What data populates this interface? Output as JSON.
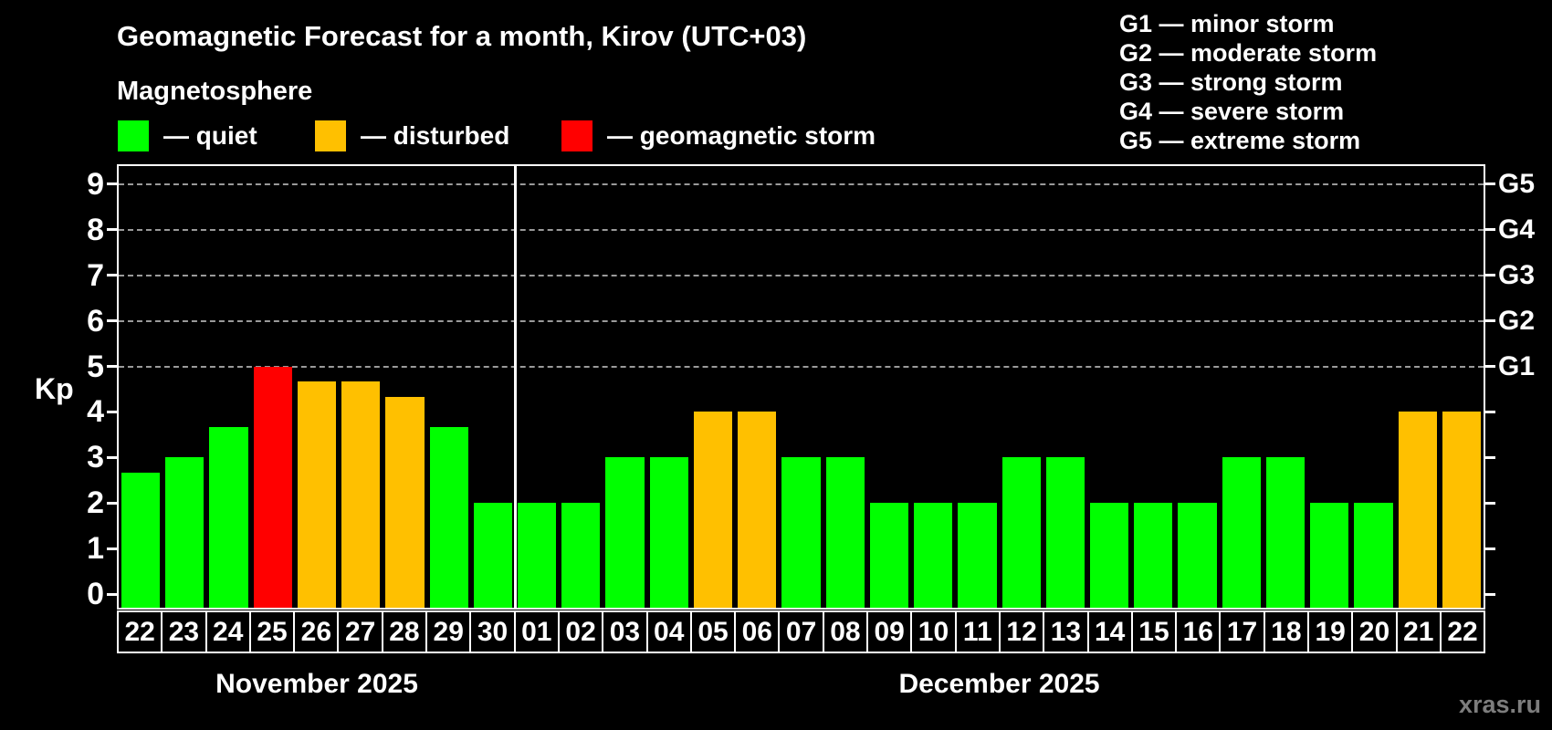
{
  "header": {
    "title": "Geomagnetic Forecast for a month, Kirov (UTC+03)",
    "subtitle": "Magnetosphere"
  },
  "legend": {
    "items": [
      {
        "key": "quiet",
        "label": "— quiet"
      },
      {
        "key": "disturbed",
        "label": "— disturbed"
      },
      {
        "key": "storm",
        "label": "— geomagnetic storm"
      }
    ]
  },
  "storm_scale": [
    "G1 — minor storm",
    "G2 — moderate storm",
    "G3 — strong storm",
    "G4 — severe storm",
    "G5 — extreme storm"
  ],
  "watermark": "xras.ru",
  "chart_data": {
    "type": "bar",
    "ylabel": "Kp",
    "ylim": [
      -0.3,
      9.4
    ],
    "yticks": [
      0,
      1,
      2,
      3,
      4,
      5,
      6,
      7,
      8,
      9
    ],
    "grid": "horizontal dashed lines only at Kp 5,6,7,8,9",
    "right_axis": [
      {
        "kp": 5,
        "label": "G1"
      },
      {
        "kp": 6,
        "label": "G2"
      },
      {
        "kp": 7,
        "label": "G3"
      },
      {
        "kp": 8,
        "label": "G4"
      },
      {
        "kp": 9,
        "label": "G5"
      }
    ],
    "colors": {
      "quiet": "#00ff00",
      "disturbed": "#ffc000",
      "storm": "#ff0000"
    },
    "months": [
      {
        "label": "November 2025",
        "days": 9
      },
      {
        "label": "December 2025",
        "days": 22
      }
    ],
    "bars": [
      {
        "date": "22",
        "month": "November 2025",
        "kp": 2.67,
        "level": "quiet"
      },
      {
        "date": "23",
        "month": "November 2025",
        "kp": 3,
        "level": "quiet"
      },
      {
        "date": "24",
        "month": "November 2025",
        "kp": 3.67,
        "level": "quiet"
      },
      {
        "date": "25",
        "month": "November 2025",
        "kp": 5,
        "level": "storm"
      },
      {
        "date": "26",
        "month": "November 2025",
        "kp": 4.67,
        "level": "disturbed"
      },
      {
        "date": "27",
        "month": "November 2025",
        "kp": 4.67,
        "level": "disturbed"
      },
      {
        "date": "28",
        "month": "November 2025",
        "kp": 4.33,
        "level": "disturbed"
      },
      {
        "date": "29",
        "month": "November 2025",
        "kp": 3.67,
        "level": "quiet"
      },
      {
        "date": "30",
        "month": "November 2025",
        "kp": 2,
        "level": "quiet"
      },
      {
        "date": "01",
        "month": "December 2025",
        "kp": 2,
        "level": "quiet"
      },
      {
        "date": "02",
        "month": "December 2025",
        "kp": 2,
        "level": "quiet"
      },
      {
        "date": "03",
        "month": "December 2025",
        "kp": 3,
        "level": "quiet"
      },
      {
        "date": "04",
        "month": "December 2025",
        "kp": 3,
        "level": "quiet"
      },
      {
        "date": "05",
        "month": "December 2025",
        "kp": 4,
        "level": "disturbed"
      },
      {
        "date": "06",
        "month": "December 2025",
        "kp": 4,
        "level": "disturbed"
      },
      {
        "date": "07",
        "month": "December 2025",
        "kp": 3,
        "level": "quiet"
      },
      {
        "date": "08",
        "month": "December 2025",
        "kp": 3,
        "level": "quiet"
      },
      {
        "date": "09",
        "month": "December 2025",
        "kp": 2,
        "level": "quiet"
      },
      {
        "date": "10",
        "month": "December 2025",
        "kp": 2,
        "level": "quiet"
      },
      {
        "date": "11",
        "month": "December 2025",
        "kp": 2,
        "level": "quiet"
      },
      {
        "date": "12",
        "month": "December 2025",
        "kp": 3,
        "level": "quiet"
      },
      {
        "date": "13",
        "month": "December 2025",
        "kp": 3,
        "level": "quiet"
      },
      {
        "date": "14",
        "month": "December 2025",
        "kp": 2,
        "level": "quiet"
      },
      {
        "date": "15",
        "month": "December 2025",
        "kp": 2,
        "level": "quiet"
      },
      {
        "date": "16",
        "month": "December 2025",
        "kp": 2,
        "level": "quiet"
      },
      {
        "date": "17",
        "month": "December 2025",
        "kp": 3,
        "level": "quiet"
      },
      {
        "date": "18",
        "month": "December 2025",
        "kp": 3,
        "level": "quiet"
      },
      {
        "date": "19",
        "month": "December 2025",
        "kp": 2,
        "level": "quiet"
      },
      {
        "date": "20",
        "month": "December 2025",
        "kp": 2,
        "level": "quiet"
      },
      {
        "date": "21",
        "month": "December 2025",
        "kp": 4,
        "level": "disturbed"
      },
      {
        "date": "22",
        "month": "December 2025",
        "kp": 4,
        "level": "disturbed"
      }
    ]
  }
}
